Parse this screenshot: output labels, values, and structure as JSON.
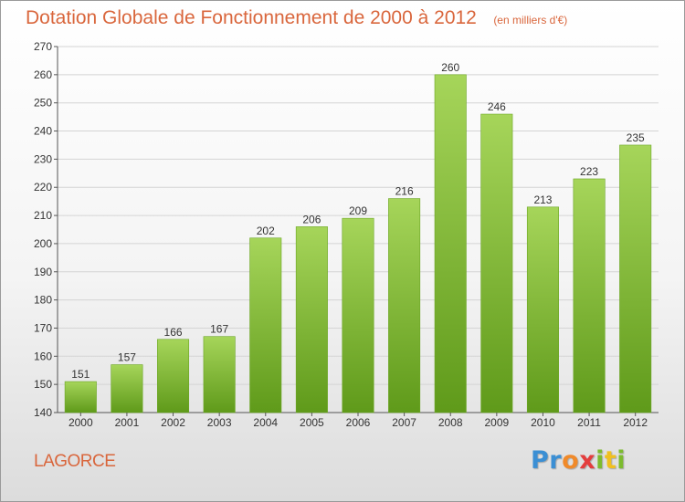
{
  "chart_data": {
    "type": "bar",
    "title": "Dotation Globale de Fonctionnement de 2000 à 2012",
    "subtitle": "(en milliers d'€)",
    "categories": [
      "2000",
      "2001",
      "2002",
      "2003",
      "2004",
      "2005",
      "2006",
      "2007",
      "2008",
      "2009",
      "2010",
      "2011",
      "2012"
    ],
    "values": [
      151,
      157,
      166,
      167,
      202,
      206,
      209,
      216,
      260,
      246,
      213,
      223,
      235
    ],
    "ylim": [
      140,
      270
    ],
    "yticks": [
      140,
      150,
      160,
      170,
      180,
      190,
      200,
      210,
      220,
      230,
      240,
      250,
      260,
      270
    ],
    "grid": true,
    "data_labels": true,
    "bar_color": "#7cbb2e"
  },
  "place_name": "LAGORCE",
  "logo": {
    "letters": [
      "P",
      "r",
      "o",
      "x",
      "i",
      "t",
      "i"
    ],
    "colors": [
      "#3b8fd4",
      "#3b8fd4",
      "#f08a2a",
      "#e43d3d",
      "#7cbb2e",
      "#f0c020",
      "#7cbb2e"
    ]
  },
  "colors": {
    "title": "#d9663c",
    "grid": "#d4d4d4",
    "axis": "#555555",
    "bar_light": "#a6d55a",
    "bar_dark": "#5f9a1a"
  }
}
